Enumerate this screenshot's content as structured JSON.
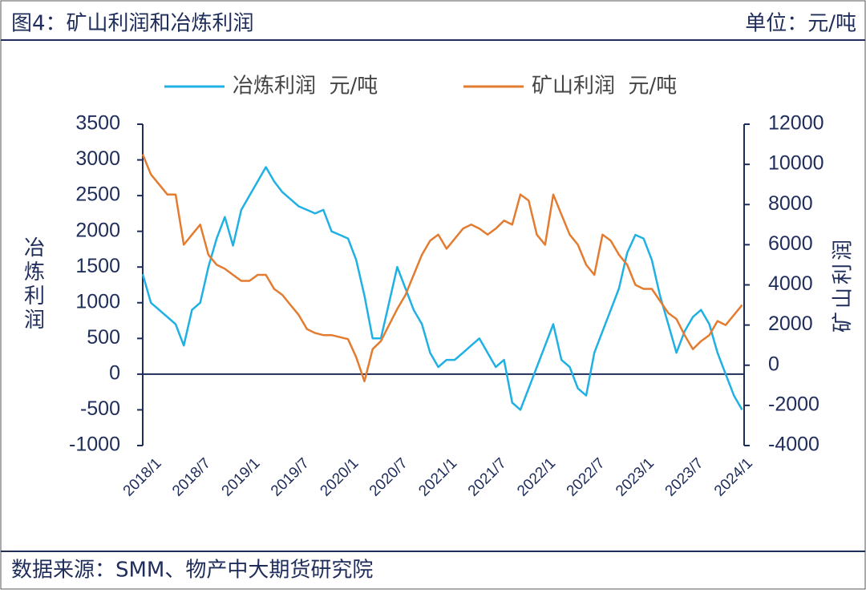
{
  "header": {
    "title": "图4：矿山利润和冶炼利润",
    "unit": "单位：元/吨"
  },
  "footer": {
    "source": "数据来源：SMM、物产中大期货研究院"
  },
  "chart_data": {
    "type": "line",
    "x": [
      "2018/1",
      "2018/2",
      "2018/3",
      "2018/4",
      "2018/5",
      "2018/6",
      "2018/7",
      "2018/8",
      "2018/9",
      "2018/10",
      "2018/11",
      "2018/12",
      "2019/1",
      "2019/2",
      "2019/3",
      "2019/4",
      "2019/5",
      "2019/6",
      "2019/7",
      "2019/8",
      "2019/9",
      "2019/10",
      "2019/11",
      "2019/12",
      "2020/1",
      "2020/2",
      "2020/3",
      "2020/4",
      "2020/5",
      "2020/6",
      "2020/7",
      "2020/8",
      "2020/9",
      "2020/10",
      "2020/11",
      "2020/12",
      "2021/1",
      "2021/2",
      "2021/3",
      "2021/4",
      "2021/5",
      "2021/6",
      "2021/7",
      "2021/8",
      "2021/9",
      "2021/10",
      "2021/11",
      "2021/12",
      "2022/1",
      "2022/2",
      "2022/3",
      "2022/4",
      "2022/5",
      "2022/6",
      "2022/7",
      "2022/8",
      "2022/9",
      "2022/10",
      "2022/11",
      "2022/12",
      "2023/1",
      "2023/2",
      "2023/3",
      "2023/4",
      "2023/5",
      "2023/6",
      "2023/7",
      "2023/8",
      "2023/9",
      "2023/10",
      "2023/11",
      "2023/12",
      "2024/1",
      "2024/2"
    ],
    "xticks": [
      "2018/1",
      "2018/7",
      "2019/1",
      "2019/7",
      "2020/1",
      "2020/7",
      "2021/1",
      "2021/7",
      "2022/1",
      "2022/7",
      "2023/1",
      "2023/7",
      "2024/1"
    ],
    "series": [
      {
        "name": "冶炼利润  元/吨",
        "color": "#1fb0e4",
        "axis": "y",
        "values": [
          1400,
          1000,
          900,
          800,
          700,
          400,
          900,
          1000,
          1500,
          1900,
          2200,
          1800,
          2300,
          2500,
          2700,
          2900,
          2700,
          2550,
          2450,
          2350,
          2300,
          2250,
          2300,
          2000,
          1950,
          1900,
          1600,
          1100,
          500,
          500,
          1000,
          1500,
          1200,
          900,
          700,
          300,
          100,
          200,
          200,
          300,
          400,
          500,
          300,
          100,
          200,
          -400,
          -500,
          -200,
          100,
          400,
          700,
          200,
          100,
          -200,
          -300,
          300,
          600,
          900,
          1200,
          1700,
          1950,
          1900,
          1600,
          1100,
          700,
          300,
          600,
          800,
          900,
          700,
          300,
          0,
          -300,
          -500
        ]
      },
      {
        "name": "矿山利润  元/吨",
        "color": "#e37c30",
        "axis": "y2",
        "values": [
          10500,
          9500,
          9000,
          8500,
          8500,
          6000,
          6500,
          7000,
          5500,
          5000,
          4800,
          4500,
          4200,
          4200,
          4500,
          4500,
          3800,
          3500,
          3000,
          2500,
          1800,
          1600,
          1500,
          1500,
          1400,
          1300,
          400,
          -800,
          800,
          1200,
          2000,
          2800,
          3500,
          4500,
          5500,
          6200,
          6500,
          5800,
          6300,
          6800,
          7000,
          6800,
          6500,
          6800,
          7200,
          7000,
          8500,
          8200,
          6500,
          6000,
          8500,
          7500,
          6500,
          6000,
          5000,
          4500,
          6500,
          6200,
          5500,
          5000,
          4000,
          3800,
          3800,
          3200,
          2600,
          2300,
          1500,
          800,
          1200,
          1500,
          2200,
          2000,
          2500,
          3000
        ]
      }
    ],
    "y_label": "冶炼利润",
    "y2_label": "矿山利润",
    "ylim": [
      -1000,
      3500
    ],
    "yticks": [
      3500,
      3000,
      2500,
      2000,
      1500,
      1000,
      500,
      0,
      -500,
      -1000
    ],
    "y2lim": [
      -4000,
      12000
    ],
    "y2ticks": [
      12000,
      10000,
      8000,
      6000,
      4000,
      2000,
      0,
      -2000,
      -4000
    ]
  }
}
